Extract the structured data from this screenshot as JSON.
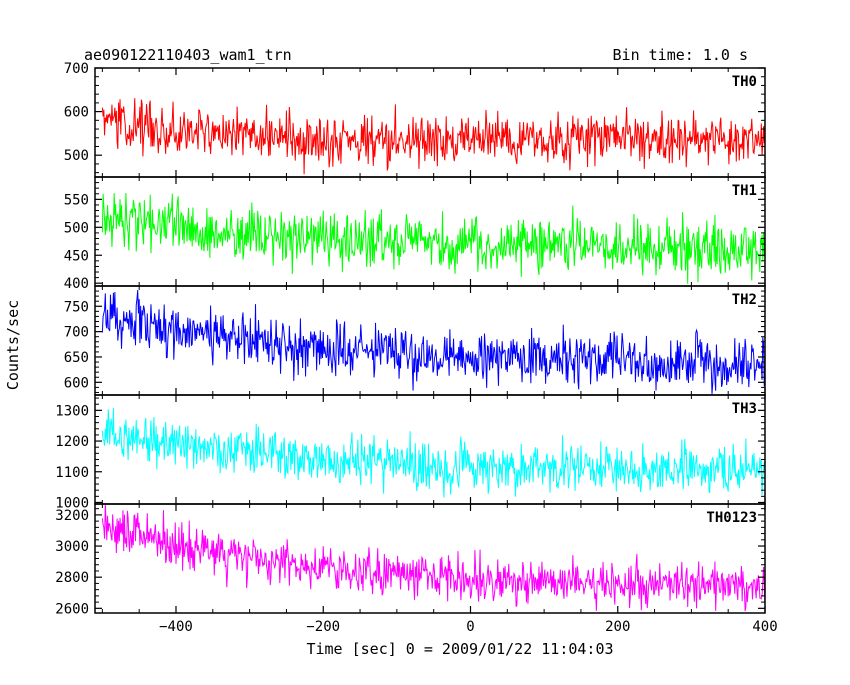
{
  "header": {
    "left_title": "ae090122110403_wam1_trn",
    "right_title": "Bin time: 1.0 s"
  },
  "xlabel": "Time [sec] 0 = 2009/01/22 11:04:03",
  "ylabel": "Counts/sec",
  "chart_data": {
    "type": "line",
    "x_range": [
      -510,
      400
    ],
    "x_ticks": [
      -400,
      -200,
      0,
      200,
      400
    ],
    "x_tick_labels": [
      "−400",
      "−200",
      "0",
      "200",
      "400"
    ],
    "x_start": -500,
    "x_end": 400,
    "bin_seconds": 1.0,
    "panels": [
      {
        "label": "TH0",
        "color": "#ff0000",
        "ylim": [
          450,
          700
        ],
        "y_ticks": [
          500,
          600,
          700
        ],
        "y_tick_labels": [
          "500",
          "600",
          "700"
        ],
        "trend": [
          [
            -500,
            575
          ],
          [
            -400,
            560
          ],
          [
            -200,
            535
          ],
          [
            0,
            535
          ],
          [
            200,
            538
          ],
          [
            400,
            535
          ]
        ],
        "noise": 28
      },
      {
        "label": "TH1",
        "color": "#00ff00",
        "ylim": [
          395,
          590
        ],
        "y_ticks": [
          400,
          450,
          500,
          550
        ],
        "y_tick_labels": [
          "400",
          "450",
          "500",
          "550"
        ],
        "trend": [
          [
            -500,
            520
          ],
          [
            -400,
            500
          ],
          [
            -200,
            480
          ],
          [
            0,
            470
          ],
          [
            200,
            468
          ],
          [
            400,
            462
          ]
        ],
        "noise": 25
      },
      {
        "label": "TH2",
        "color": "#0000ff",
        "ylim": [
          575,
          790
        ],
        "y_ticks": [
          600,
          650,
          700,
          750
        ],
        "y_tick_labels": [
          "600",
          "650",
          "700",
          "750"
        ],
        "trend": [
          [
            -500,
            730
          ],
          [
            -400,
            700
          ],
          [
            -200,
            665
          ],
          [
            0,
            650
          ],
          [
            200,
            643
          ],
          [
            400,
            638
          ]
        ],
        "noise": 27
      },
      {
        "label": "TH3",
        "color": "#00ffff",
        "ylim": [
          995,
          1350
        ],
        "y_ticks": [
          1000,
          1100,
          1200,
          1300
        ],
        "y_tick_labels": [
          "1000",
          "1100",
          "1200",
          "1300"
        ],
        "trend": [
          [
            -500,
            1225
          ],
          [
            -400,
            1190
          ],
          [
            -200,
            1140
          ],
          [
            0,
            1115
          ],
          [
            200,
            1110
          ],
          [
            400,
            1108
          ]
        ],
        "noise": 40
      },
      {
        "label": "TH0123",
        "color": "#ff00ff",
        "ylim": [
          2570,
          3270
        ],
        "y_ticks": [
          2600,
          2800,
          3000,
          3200
        ],
        "y_tick_labels": [
          "2600",
          "2800",
          "3000",
          "3200"
        ],
        "trend": [
          [
            -500,
            3130
          ],
          [
            -400,
            3000
          ],
          [
            -200,
            2850
          ],
          [
            0,
            2780
          ],
          [
            200,
            2755
          ],
          [
            400,
            2740
          ]
        ],
        "noise": 70
      }
    ]
  }
}
